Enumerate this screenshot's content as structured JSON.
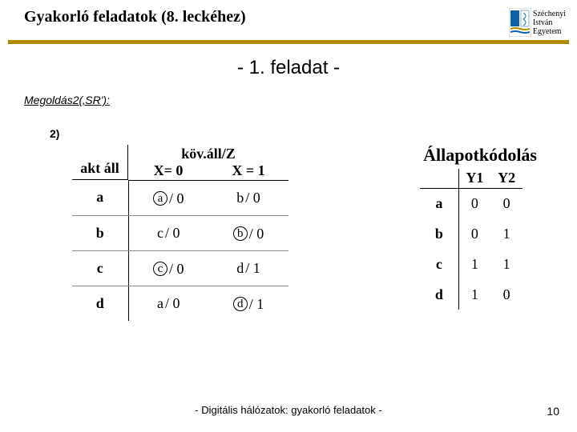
{
  "header": {
    "title": "Gyakorló feladatok (8. leckéhez)",
    "university": {
      "l1": "Széchenyi",
      "l2": "István",
      "l3": "Egyetem"
    }
  },
  "subtitle": "- 1. feladat -",
  "solution_label": "Megoldás2(‚SR'):",
  "step_label": "2)",
  "trans_table": {
    "header_top": "köv.áll/Z",
    "col_state": "akt áll",
    "col_x0": "X= 0",
    "col_x1": "X = 1",
    "rows": [
      {
        "state": "a",
        "x0": {
          "next": "a",
          "circled": true,
          "out": "0"
        },
        "x1": {
          "next": "b",
          "circled": false,
          "out": "0"
        }
      },
      {
        "state": "b",
        "x0": {
          "next": "c",
          "circled": false,
          "out": "0"
        },
        "x1": {
          "next": "b",
          "circled": true,
          "out": "0"
        }
      },
      {
        "state": "c",
        "x0": {
          "next": "c",
          "circled": true,
          "out": "0"
        },
        "x1": {
          "next": "d",
          "circled": false,
          "out": "1"
        }
      },
      {
        "state": "d",
        "x0": {
          "next": "a",
          "circled": false,
          "out": "0"
        },
        "x1": {
          "next": "d",
          "circled": true,
          "out": "1"
        }
      }
    ]
  },
  "encoding_table": {
    "title": "Állapotkódolás",
    "col_y1": "Y1",
    "col_y2": "Y2",
    "rows": [
      {
        "state": "a",
        "y1": "0",
        "y2": "0"
      },
      {
        "state": "b",
        "y1": "0",
        "y2": "1"
      },
      {
        "state": "c",
        "y1": "1",
        "y2": "1"
      },
      {
        "state": "d",
        "y1": "1",
        "y2": "0"
      }
    ]
  },
  "footer": "- Digitális hálózatok: gyakorló feladatok -",
  "page_number": "10",
  "colors": {
    "accent_bar": "#b28a00",
    "logo_blue": "#1061a5",
    "logo_gold": "#b28a00"
  }
}
